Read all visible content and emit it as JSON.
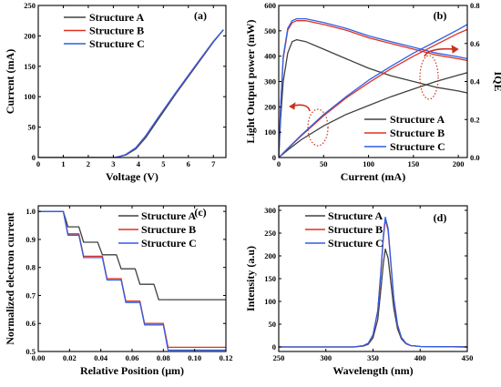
{
  "colors": {
    "structure_a": "#404040",
    "structure_b": "#e0301e",
    "structure_c": "#2e5fe8",
    "annotation": "#c8321e"
  },
  "chart_data": [
    {
      "id": "a",
      "panel_label": "(a)",
      "type": "line",
      "xlabel": "Voltage (V)",
      "ylabel": "Current (mA)",
      "xlim": [
        0,
        7.5
      ],
      "ylim": [
        0,
        250
      ],
      "xticks": [
        0,
        1,
        2,
        3,
        4,
        5,
        6,
        7
      ],
      "yticks": [
        0,
        50,
        100,
        150,
        200,
        250
      ],
      "legend": "top-left",
      "series": [
        {
          "name": "Structure A",
          "color_key": "structure_a",
          "x": [
            0,
            3.0,
            3.2,
            3.5,
            3.9,
            4.3,
            4.8,
            5.5,
            6.3,
            7.0,
            7.4
          ],
          "y": [
            0,
            0,
            1,
            4,
            14,
            33,
            63,
            105,
            150,
            190,
            210
          ]
        },
        {
          "name": "Structure B",
          "color_key": "structure_b",
          "x": [
            0,
            3.0,
            3.2,
            3.5,
            3.9,
            4.3,
            4.8,
            5.5,
            6.3,
            7.0,
            7.4
          ],
          "y": [
            0,
            0,
            1,
            5,
            16,
            36,
            66,
            107,
            152,
            191,
            210
          ]
        },
        {
          "name": "Structure C",
          "color_key": "structure_c",
          "x": [
            0,
            3.0,
            3.2,
            3.5,
            3.9,
            4.3,
            4.8,
            5.5,
            6.3,
            7.0,
            7.4
          ],
          "y": [
            0,
            0,
            1,
            5,
            16,
            36,
            66,
            107,
            152,
            191,
            210
          ]
        }
      ]
    },
    {
      "id": "b",
      "panel_label": "(b)",
      "type": "line",
      "xlabel": "Current (mA)",
      "ylabel": "Light Output power (mW)",
      "ylabel_right": "IQE",
      "xlim": [
        0,
        210
      ],
      "ylim": [
        0,
        600
      ],
      "ylim_right": [
        0,
        0.8
      ],
      "xticks": [
        0,
        50,
        100,
        150,
        200
      ],
      "yticks": [
        0,
        100,
        200,
        300,
        400,
        500,
        600
      ],
      "yticks_right": [
        0.0,
        0.2,
        0.4,
        0.6,
        0.8
      ],
      "legend": "bottom-right",
      "series": [
        {
          "name": "Structure A",
          "axis": "right",
          "color_key": "structure_a",
          "x": [
            0,
            2,
            5,
            10,
            15,
            20,
            30,
            50,
            75,
            100,
            125,
            150,
            175,
            200,
            210
          ],
          "y": [
            0.0,
            0.2,
            0.4,
            0.55,
            0.61,
            0.62,
            0.61,
            0.57,
            0.52,
            0.47,
            0.43,
            0.4,
            0.37,
            0.35,
            0.34
          ]
        },
        {
          "name": "Structure B",
          "axis": "right",
          "color_key": "structure_b",
          "x": [
            0,
            2,
            5,
            10,
            15,
            20,
            30,
            50,
            75,
            100,
            125,
            150,
            175,
            200,
            210
          ],
          "y": [
            0.0,
            0.26,
            0.52,
            0.67,
            0.71,
            0.72,
            0.72,
            0.7,
            0.67,
            0.63,
            0.6,
            0.57,
            0.54,
            0.52,
            0.51
          ]
        },
        {
          "name": "Structure C",
          "axis": "right",
          "color_key": "structure_c",
          "x": [
            0,
            2,
            5,
            10,
            15,
            20,
            30,
            50,
            75,
            100,
            125,
            150,
            175,
            200,
            210
          ],
          "y": [
            0.0,
            0.26,
            0.53,
            0.68,
            0.72,
            0.73,
            0.73,
            0.71,
            0.68,
            0.64,
            0.61,
            0.58,
            0.55,
            0.53,
            0.52
          ]
        },
        {
          "name": "Structure A",
          "axis": "left",
          "color_key": "structure_a",
          "x": [
            0,
            10,
            25,
            50,
            75,
            100,
            125,
            150,
            175,
            200,
            210
          ],
          "y": [
            0,
            30,
            70,
            125,
            170,
            205,
            240,
            270,
            300,
            325,
            335
          ]
        },
        {
          "name": "Structure B",
          "axis": "left",
          "color_key": "structure_b",
          "x": [
            0,
            10,
            25,
            50,
            75,
            100,
            125,
            150,
            175,
            200,
            210
          ],
          "y": [
            0,
            35,
            85,
            165,
            235,
            295,
            350,
            400,
            445,
            490,
            505
          ]
        },
        {
          "name": "Structure C",
          "axis": "left",
          "color_key": "structure_c",
          "x": [
            0,
            10,
            25,
            50,
            75,
            100,
            125,
            150,
            175,
            200,
            210
          ],
          "y": [
            0,
            36,
            88,
            170,
            240,
            305,
            360,
            412,
            458,
            505,
            525
          ]
        }
      ]
    },
    {
      "id": "c",
      "panel_label": "(c)",
      "type": "line",
      "xlabel": "Relative Position (μm)",
      "ylabel": "Normalized electron current",
      "xlim": [
        0,
        0.12
      ],
      "ylim": [
        0.5,
        1.02
      ],
      "xticks": [
        "0.00",
        "0.02",
        "0.04",
        "0.06",
        "0.08",
        "0.10",
        "0.12"
      ],
      "yticks": [
        "0.5",
        "0.6",
        "0.7",
        "0.8",
        "0.9",
        "1.0"
      ],
      "legend": "top-right",
      "series": [
        {
          "name": "Structure A",
          "color_key": "structure_a",
          "x": [
            0,
            0.016,
            0.019,
            0.026,
            0.029,
            0.038,
            0.041,
            0.05,
            0.053,
            0.062,
            0.065,
            0.074,
            0.077,
            0.12
          ],
          "y": [
            1.0,
            1.0,
            0.945,
            0.945,
            0.89,
            0.89,
            0.845,
            0.845,
            0.795,
            0.795,
            0.74,
            0.74,
            0.685,
            0.685
          ]
        },
        {
          "name": "Structure B",
          "color_key": "structure_b",
          "x": [
            0,
            0.016,
            0.019,
            0.026,
            0.029,
            0.041,
            0.044,
            0.053,
            0.056,
            0.065,
            0.068,
            0.08,
            0.083,
            0.12
          ],
          "y": [
            1.0,
            1.0,
            0.92,
            0.92,
            0.84,
            0.84,
            0.76,
            0.76,
            0.68,
            0.68,
            0.6,
            0.6,
            0.515,
            0.515
          ]
        },
        {
          "name": "Structure C",
          "color_key": "structure_c",
          "x": [
            0,
            0.016,
            0.019,
            0.026,
            0.029,
            0.041,
            0.044,
            0.053,
            0.056,
            0.065,
            0.068,
            0.08,
            0.083,
            0.12
          ],
          "y": [
            1.0,
            1.0,
            0.915,
            0.915,
            0.835,
            0.835,
            0.755,
            0.755,
            0.675,
            0.675,
            0.595,
            0.595,
            0.505,
            0.505
          ]
        }
      ]
    },
    {
      "id": "d",
      "panel_label": "(d)",
      "type": "line",
      "xlabel": "Wavelength (nm)",
      "ylabel": "Intensity (a.u)",
      "xlim": [
        250,
        450
      ],
      "ylim": [
        -10,
        310
      ],
      "xticks": [
        250,
        300,
        350,
        400,
        450
      ],
      "yticks": [
        0,
        50,
        100,
        150,
        200,
        250,
        300
      ],
      "legend": "top-left",
      "series": [
        {
          "name": "Structure A",
          "color_key": "structure_a",
          "x": [
            250,
            330,
            340,
            345,
            350,
            355,
            358,
            361,
            363,
            366,
            369,
            372,
            376,
            380,
            385,
            390,
            400,
            450
          ],
          "y": [
            0,
            0,
            2,
            6,
            20,
            60,
            120,
            185,
            215,
            195,
            140,
            85,
            40,
            18,
            7,
            3,
            1,
            0
          ]
        },
        {
          "name": "Structure B",
          "color_key": "structure_b",
          "x": [
            250,
            330,
            340,
            345,
            350,
            355,
            358,
            361,
            363,
            366,
            369,
            372,
            376,
            380,
            385,
            390,
            400,
            450
          ],
          "y": [
            0,
            0,
            3,
            8,
            26,
            78,
            155,
            240,
            280,
            255,
            180,
            105,
            48,
            21,
            8,
            3,
            1,
            0
          ]
        },
        {
          "name": "Structure C",
          "color_key": "structure_c",
          "x": [
            250,
            330,
            340,
            345,
            350,
            355,
            358,
            361,
            363,
            366,
            369,
            372,
            376,
            380,
            385,
            390,
            400,
            450
          ],
          "y": [
            0,
            0,
            3,
            8,
            27,
            80,
            158,
            245,
            285,
            260,
            183,
            107,
            49,
            21,
            8,
            3,
            1,
            0
          ]
        }
      ]
    }
  ]
}
